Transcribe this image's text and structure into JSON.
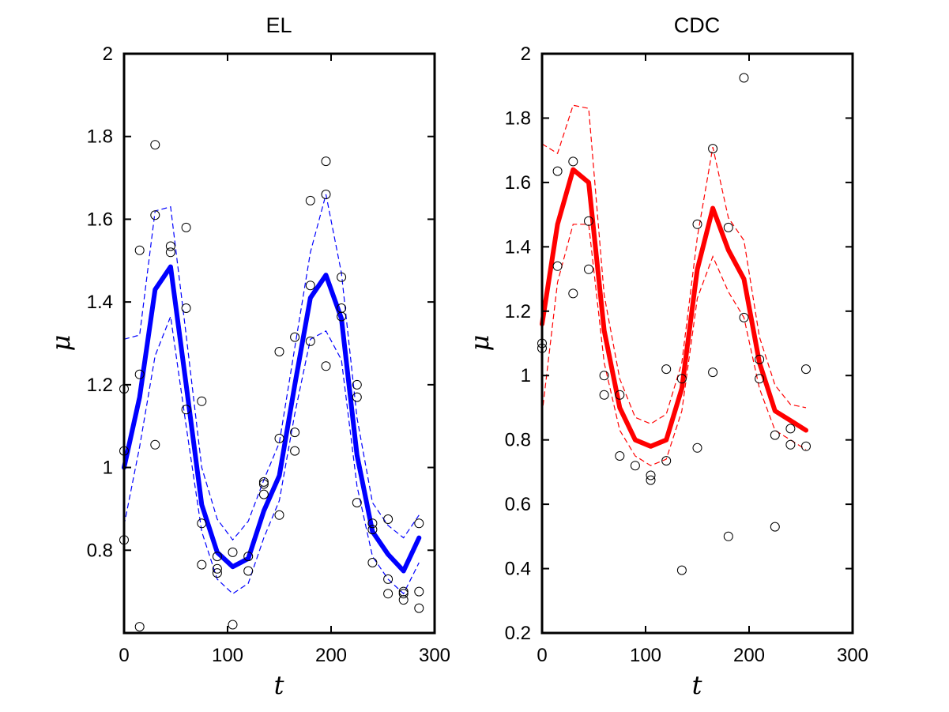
{
  "chart_data": [
    {
      "type": "line",
      "title": "EL",
      "xlabel": "t",
      "ylabel": "μ",
      "xlim": [
        0,
        300
      ],
      "ylim": [
        0.6,
        2.0
      ],
      "xticks": [
        "0",
        "100",
        "200",
        "300"
      ],
      "yticks": [
        "0.8",
        "1",
        "1.2",
        "1.4",
        "1.6",
        "1.8",
        "2"
      ],
      "color": "#0000ff",
      "series": [
        {
          "x": [
            0,
            15,
            30,
            45,
            60,
            75,
            90,
            105,
            120,
            135,
            150,
            165,
            180,
            195,
            210,
            225,
            240,
            255,
            270,
            285
          ],
          "mean": [
            1.0,
            1.17,
            1.43,
            1.485,
            1.2,
            0.91,
            0.795,
            0.76,
            0.78,
            0.895,
            0.98,
            1.2,
            1.41,
            1.465,
            1.36,
            1.03,
            0.845,
            0.79,
            0.75,
            0.83
          ],
          "upper": [
            1.31,
            1.32,
            1.62,
            1.63,
            1.32,
            1.0,
            0.875,
            0.825,
            0.87,
            0.97,
            1.06,
            1.29,
            1.52,
            1.66,
            1.47,
            1.12,
            0.915,
            0.86,
            0.83,
            0.885
          ],
          "lower": [
            0.86,
            1.05,
            1.27,
            1.365,
            1.1,
            0.845,
            0.73,
            0.695,
            0.72,
            0.83,
            0.92,
            1.13,
            1.31,
            1.33,
            1.26,
            0.955,
            0.785,
            0.73,
            0.695,
            0.77
          ]
        }
      ],
      "points": [
        [
          0,
          1.19
        ],
        [
          0,
          1.04
        ],
        [
          0,
          0.825
        ],
        [
          15,
          1.525
        ],
        [
          15,
          1.225
        ],
        [
          15,
          0.615
        ],
        [
          30,
          1.78
        ],
        [
          30,
          1.61
        ],
        [
          30,
          1.055
        ],
        [
          45,
          1.535
        ],
        [
          45,
          1.52
        ],
        [
          60,
          1.58
        ],
        [
          60,
          1.385
        ],
        [
          60,
          1.14
        ],
        [
          75,
          1.16
        ],
        [
          75,
          0.865
        ],
        [
          75,
          0.765
        ],
        [
          90,
          0.785
        ],
        [
          90,
          0.755
        ],
        [
          90,
          0.745
        ],
        [
          105,
          0.795
        ],
        [
          105,
          0.62
        ],
        [
          120,
          0.785
        ],
        [
          120,
          0.75
        ],
        [
          135,
          0.965
        ],
        [
          135,
          0.96
        ],
        [
          135,
          0.935
        ],
        [
          150,
          1.28
        ],
        [
          150,
          1.07
        ],
        [
          150,
          0.885
        ],
        [
          165,
          1.315
        ],
        [
          165,
          1.085
        ],
        [
          165,
          1.04
        ],
        [
          180,
          1.645
        ],
        [
          180,
          1.44
        ],
        [
          180,
          1.305
        ],
        [
          195,
          1.74
        ],
        [
          195,
          1.66
        ],
        [
          195,
          1.245
        ],
        [
          210,
          1.46
        ],
        [
          210,
          1.385
        ],
        [
          210,
          1.365
        ],
        [
          225,
          1.2
        ],
        [
          225,
          1.17
        ],
        [
          225,
          0.915
        ],
        [
          240,
          0.865
        ],
        [
          240,
          0.85
        ],
        [
          240,
          0.77
        ],
        [
          255,
          0.875
        ],
        [
          255,
          0.73
        ],
        [
          255,
          0.695
        ],
        [
          270,
          0.7
        ],
        [
          270,
          0.695
        ],
        [
          270,
          0.68
        ],
        [
          285,
          0.865
        ],
        [
          285,
          0.7
        ],
        [
          285,
          0.66
        ]
      ]
    },
    {
      "type": "line",
      "title": "CDC",
      "xlabel": "t",
      "ylabel": "μ",
      "xlim": [
        0,
        300
      ],
      "ylim": [
        0.2,
        2.0
      ],
      "xticks": [
        "0",
        "100",
        "200",
        "300"
      ],
      "yticks": [
        "0.2",
        "0.4",
        "0.6",
        "0.8",
        "1",
        "1.2",
        "1.4",
        "1.6",
        "1.8",
        "2"
      ],
      "color": "#ff0000",
      "series": [
        {
          "x": [
            0,
            15,
            30,
            45,
            60,
            75,
            90,
            105,
            120,
            135,
            150,
            165,
            180,
            195,
            210,
            225,
            240,
            255
          ],
          "mean": [
            1.16,
            1.47,
            1.64,
            1.6,
            1.14,
            0.9,
            0.8,
            0.78,
            0.8,
            0.96,
            1.33,
            1.52,
            1.39,
            1.3,
            1.04,
            0.89,
            0.86,
            0.83
          ],
          "upper": [
            1.72,
            1.69,
            1.84,
            1.83,
            1.25,
            0.99,
            0.87,
            0.85,
            0.88,
            1.04,
            1.43,
            1.71,
            1.49,
            1.42,
            1.12,
            0.97,
            0.91,
            0.9
          ],
          "lower": [
            0.88,
            1.29,
            1.47,
            1.47,
            1.04,
            0.83,
            0.75,
            0.72,
            0.74,
            0.89,
            1.24,
            1.37,
            1.26,
            1.18,
            0.96,
            0.83,
            0.8,
            0.77
          ]
        }
      ],
      "points": [
        [
          0,
          1.1
        ],
        [
          0,
          1.085
        ],
        [
          15,
          1.635
        ],
        [
          15,
          1.34
        ],
        [
          30,
          1.665
        ],
        [
          30,
          1.255
        ],
        [
          45,
          1.48
        ],
        [
          45,
          1.33
        ],
        [
          60,
          1.0
        ],
        [
          60,
          0.94
        ],
        [
          75,
          0.94
        ],
        [
          75,
          0.75
        ],
        [
          90,
          0.72
        ],
        [
          105,
          0.69
        ],
        [
          105,
          0.675
        ],
        [
          120,
          1.02
        ],
        [
          120,
          0.735
        ],
        [
          135,
          0.99
        ],
        [
          135,
          0.395
        ],
        [
          150,
          1.47
        ],
        [
          150,
          0.775
        ],
        [
          165,
          1.705
        ],
        [
          165,
          1.01
        ],
        [
          180,
          1.46
        ],
        [
          180,
          0.5
        ],
        [
          195,
          1.925
        ],
        [
          195,
          1.18
        ],
        [
          210,
          1.05
        ],
        [
          210,
          0.99
        ],
        [
          225,
          0.815
        ],
        [
          225,
          0.53
        ],
        [
          240,
          0.835
        ],
        [
          240,
          0.785
        ],
        [
          255,
          1.02
        ],
        [
          255,
          0.78
        ]
      ]
    }
  ]
}
